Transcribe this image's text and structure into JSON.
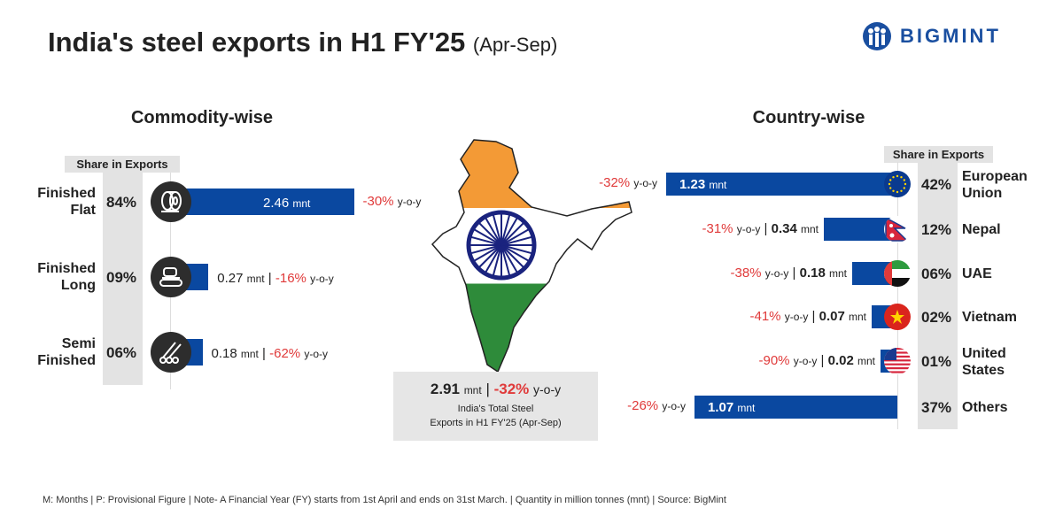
{
  "title": "India's steel exports in H1 FY'25",
  "title_period": "(Apr-Sep)",
  "brand": "BIGMINT",
  "commodity": {
    "heading": "Commodity-wise",
    "share_header": "Share in Exports",
    "items": [
      {
        "label1": "Finished",
        "label2": "Flat",
        "share": "84%",
        "value": "2.46",
        "unit": "mnt",
        "yoy": "-30%",
        "yoy_unit": "y-o-y",
        "icon": "steel-coil-icon"
      },
      {
        "label1": "Finished",
        "label2": "Long",
        "share": "09%",
        "value": "0.27",
        "unit": "mnt",
        "yoy": "-16%",
        "yoy_unit": "y-o-y",
        "icon": "long-steel-conveyor-icon"
      },
      {
        "label1": "Semi",
        "label2": "Finished",
        "share": "06%",
        "value": "0.18",
        "unit": "mnt",
        "yoy": "-62%",
        "yoy_unit": "y-o-y",
        "icon": "billets-icon"
      }
    ]
  },
  "country": {
    "heading": "Country-wise",
    "share_header": "Share in Exports",
    "items": [
      {
        "label1": "European",
        "label2": "Union",
        "share": "42%",
        "value": "1.23",
        "unit": "mnt",
        "yoy": "-32%",
        "yoy_unit": "y-o-y",
        "icon": "eu-flag-icon"
      },
      {
        "label1": "Nepal",
        "label2": "",
        "share": "12%",
        "value": "0.34",
        "unit": "mnt",
        "yoy": "-31%",
        "yoy_unit": "y-o-y",
        "icon": "nepal-flag-icon"
      },
      {
        "label1": "UAE",
        "label2": "",
        "share": "06%",
        "value": "0.18",
        "unit": "mnt",
        "yoy": "-38%",
        "yoy_unit": "y-o-y",
        "icon": "uae-flag-icon"
      },
      {
        "label1": "Vietnam",
        "label2": "",
        "share": "02%",
        "value": "0.07",
        "unit": "mnt",
        "yoy": "-41%",
        "yoy_unit": "y-o-y",
        "icon": "vietnam-flag-icon"
      },
      {
        "label1": "United",
        "label2": "States",
        "share": "01%",
        "value": "0.02",
        "unit": "mnt",
        "yoy": "-90%",
        "yoy_unit": "y-o-y",
        "icon": "us-flag-icon"
      },
      {
        "label1": "Others",
        "label2": "",
        "share": "37%",
        "value": "1.07",
        "unit": "mnt",
        "yoy": "-26%",
        "yoy_unit": "y-o-y",
        "icon": ""
      }
    ]
  },
  "total": {
    "value": "2.91",
    "unit": "mnt",
    "sep": "|",
    "yoy": "-32%",
    "yoy_unit": "y-o-y",
    "caption1": "India's Total Steel",
    "caption2": "Exports in H1 FY'25 (Apr-Sep)"
  },
  "footer": "M: Months | P: Provisional Figure | Note- A Financial Year (FY) starts from 1st April and ends on 31st March. | Quantity in million tonnes (mnt) | Source: BigMint",
  "colors": {
    "bar": "#0a48a0",
    "negative": "#e03a3a",
    "column": "#e3e3e3",
    "saffron": "#f39a36",
    "green": "#2e8b3a",
    "chakra": "#1a237e"
  },
  "chart_data": [
    {
      "type": "bar",
      "title": "Commodity-wise",
      "categories": [
        "Finished Flat",
        "Finished Long",
        "Semi Finished"
      ],
      "values": [
        2.46,
        0.27,
        0.18
      ],
      "share_pct": [
        84,
        9,
        6
      ],
      "yoy_pct": [
        -30,
        -16,
        -62
      ],
      "unit": "mnt",
      "orientation": "horizontal"
    },
    {
      "type": "bar",
      "title": "Country-wise",
      "categories": [
        "European Union",
        "Nepal",
        "UAE",
        "Vietnam",
        "United States",
        "Others"
      ],
      "values": [
        1.23,
        0.34,
        0.18,
        0.07,
        0.02,
        1.07
      ],
      "share_pct": [
        42,
        12,
        6,
        2,
        1,
        37
      ],
      "yoy_pct": [
        -32,
        -31,
        -38,
        -41,
        -90,
        -26
      ],
      "unit": "mnt",
      "orientation": "horizontal"
    }
  ]
}
